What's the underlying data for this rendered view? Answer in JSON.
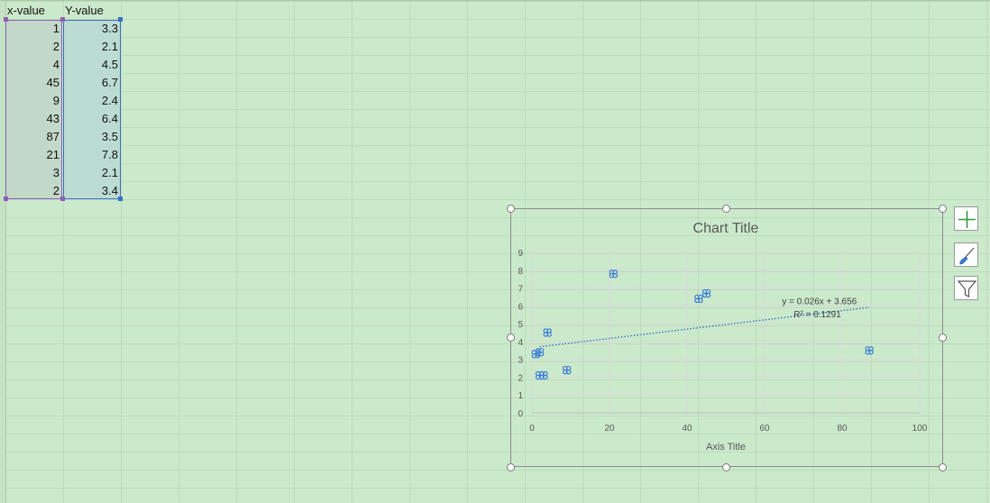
{
  "sheet": {
    "headers": {
      "x": "x-value",
      "y": "Y-value"
    },
    "rows": [
      {
        "x": "1",
        "y": "3.3"
      },
      {
        "x": "2",
        "y": "2.1"
      },
      {
        "x": "4",
        "y": "4.5"
      },
      {
        "x": "45",
        "y": "6.7"
      },
      {
        "x": "9",
        "y": "2.4"
      },
      {
        "x": "43",
        "y": "6.4"
      },
      {
        "x": "87",
        "y": "3.5"
      },
      {
        "x": "21",
        "y": "7.8"
      },
      {
        "x": "3",
        "y": "2.1"
      },
      {
        "x": "2",
        "y": "3.4"
      }
    ]
  },
  "chart_data": {
    "type": "scatter",
    "title": "Chart Title",
    "xlabel": "Axis Title",
    "ylabel": "",
    "xlim": [
      0,
      100
    ],
    "ylim": [
      0,
      9
    ],
    "xticks": [
      "0",
      "20",
      "40",
      "60",
      "80",
      "100"
    ],
    "yticks": [
      "0",
      "1",
      "2",
      "3",
      "4",
      "5",
      "6",
      "7",
      "8",
      "9"
    ],
    "grid": true,
    "series": [
      {
        "x": [
          1,
          2,
          4,
          45,
          9,
          43,
          87,
          21,
          3,
          2
        ],
        "y": [
          3.3,
          2.1,
          4.5,
          6.7,
          2.4,
          6.4,
          3.5,
          7.8,
          2.1,
          3.4
        ]
      }
    ],
    "trendline": {
      "type": "linear",
      "slope": 0.026,
      "intercept": 3.656,
      "x_range": [
        2,
        87
      ],
      "equation": "y = 0.026x + 3.656",
      "r2": "R² = 0.1291"
    },
    "colors": {
      "marker": "#3a7bd5",
      "trendline": "#3a72c8",
      "gridline": "#d9d9d9"
    }
  },
  "chart_tools": {
    "add_element_icon": "plus-icon",
    "styles_icon": "brush-icon",
    "filters_icon": "funnel-icon"
  }
}
